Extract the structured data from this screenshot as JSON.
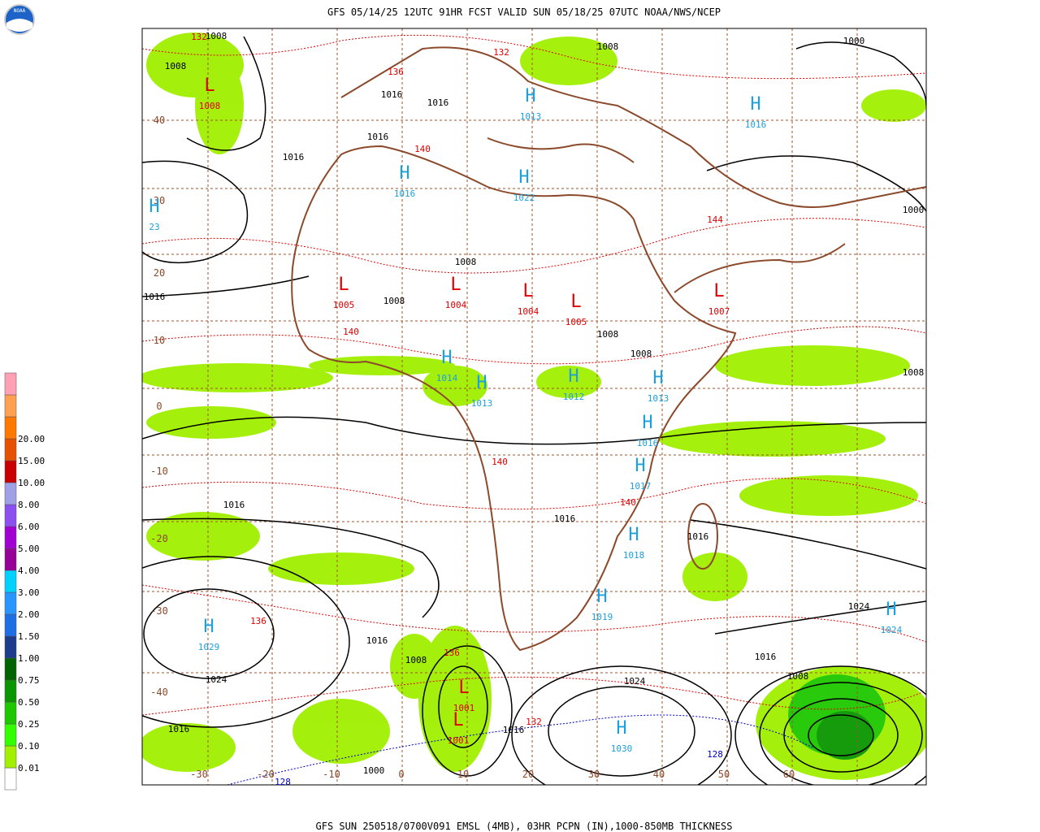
{
  "header": {
    "title": "GFS 05/14/25 12UTC 91HR FCST VALID SUN 05/18/25 07UTC NOAA/NWS/NCEP"
  },
  "footer": {
    "text": "GFS SUN 250518/0700V091 EMSL (4MB), 03HR PCPN (IN),1000-850MB THICKNESS"
  },
  "logo": {
    "text": "NOAA"
  },
  "legend": {
    "labels": [
      "0.01",
      "0.10",
      "0.25",
      "0.50",
      "0.75",
      "1.00",
      "1.50",
      "2.00",
      "3.00",
      "4.00",
      "5.00",
      "6.00",
      "8.00",
      "10.00",
      "15.00",
      "20.00"
    ],
    "colors": [
      "#ffffff",
      "#a0f000",
      "#32ff00",
      "#1ec800",
      "#0a9600",
      "#006400",
      "#1e3c8c",
      "#1e6ee6",
      "#2896ff",
      "#00d2ff",
      "#960096",
      "#a000d2",
      "#8c50f0",
      "#a0a0e6",
      "#c80000",
      "#e65000",
      "#ff7800",
      "#ffa050",
      "#ffa0b4"
    ]
  },
  "lat_labels": [
    "40",
    "30",
    "20",
    "10",
    "0",
    "-10",
    "-20",
    "-30",
    "-40"
  ],
  "lon_labels": [
    "-30",
    "-20",
    "-10",
    "0",
    "10",
    "20",
    "30",
    "40",
    "50",
    "60"
  ],
  "centers": [
    {
      "symbol": "H",
      "value": "1029"
    },
    {
      "symbol": "H",
      "value": "1030"
    },
    {
      "symbol": "H",
      "value": "1024"
    },
    {
      "symbol": "H",
      "value": "1018"
    },
    {
      "symbol": "H",
      "value": "1019"
    },
    {
      "symbol": "H",
      "value": "1017"
    },
    {
      "symbol": "H",
      "value": "1016"
    },
    {
      "symbol": "H",
      "value": "1013"
    },
    {
      "symbol": "H",
      "value": "1012"
    },
    {
      "symbol": "H",
      "value": "1013"
    },
    {
      "symbol": "H",
      "value": "1014"
    },
    {
      "symbol": "H",
      "value": "1022"
    },
    {
      "symbol": "H",
      "value": "1016"
    },
    {
      "symbol": "H",
      "value": "1013"
    },
    {
      "symbol": "H",
      "value": "1016"
    },
    {
      "symbol": "H",
      "value": "23"
    },
    {
      "symbol": "L",
      "value": "1008"
    },
    {
      "symbol": "L",
      "value": "1005"
    },
    {
      "symbol": "L",
      "value": "1004"
    },
    {
      "symbol": "L",
      "value": "1004"
    },
    {
      "symbol": "L",
      "value": "1005"
    },
    {
      "symbol": "L",
      "value": "1001"
    },
    {
      "symbol": "L",
      "value": "1001"
    },
    {
      "symbol": "L",
      "value": "1007"
    }
  ],
  "isobar_labels": [
    "1008",
    "1008",
    "1016",
    "1016",
    "1016",
    "1016",
    "1008",
    "1000",
    "1016",
    "1008",
    "1008",
    "1008",
    "1008",
    "1016",
    "1016",
    "1016",
    "1016",
    "1008",
    "1024",
    "1016",
    "1016",
    "1000",
    "1024",
    "1016",
    "1008",
    "1024",
    "1000",
    "1008"
  ],
  "thickness_labels": [
    "132",
    "136",
    "132",
    "140",
    "144",
    "140",
    "140",
    "136",
    "136",
    "132",
    "128",
    "128",
    "140"
  ]
}
